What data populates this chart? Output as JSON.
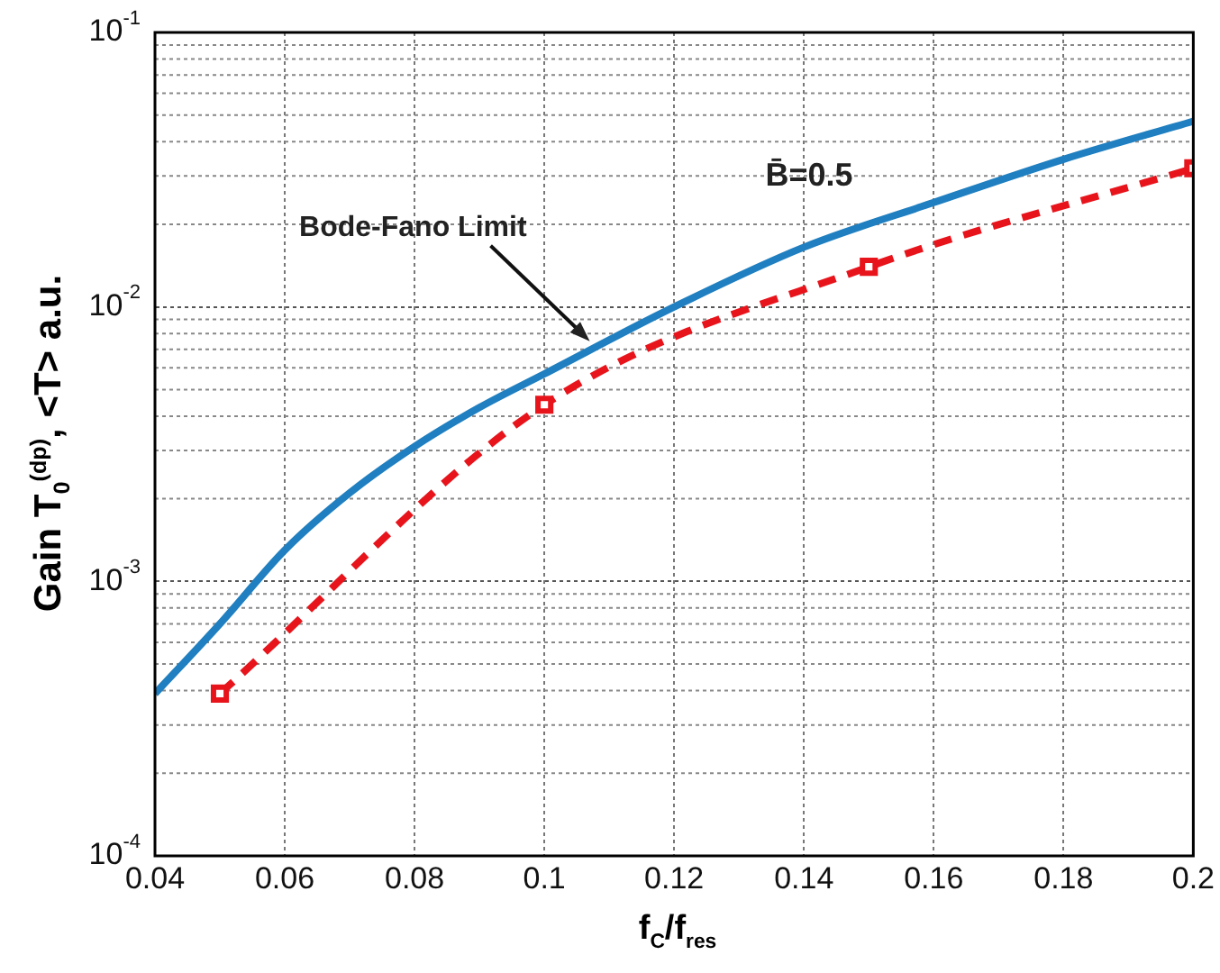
{
  "chart_data": {
    "type": "line",
    "xlabel": "f$_{C}$/f$_{res}$",
    "ylabel": "Gain T$_{0}$$^{(dp)}$, <T> a.u.",
    "series": [
      {
        "color": "#1f7fc0",
        "line_style": "solid",
        "marker": "none",
        "x": [
          0.04,
          0.05,
          0.06,
          0.07,
          0.08,
          0.09,
          0.1,
          0.12,
          0.14,
          0.16,
          0.18,
          0.2
        ],
        "values": [
          0.00039,
          0.0007,
          0.0013,
          0.0021,
          0.0031,
          0.0043,
          0.0057,
          0.01,
          0.0165,
          0.024,
          0.0345,
          0.0475
        ]
      },
      {
        "color": "#e8141c",
        "line_style": "dashed",
        "marker": "square",
        "x": [
          0.05,
          0.1,
          0.15,
          0.2
        ],
        "values": [
          0.00039,
          0.0044,
          0.014,
          0.032
        ]
      }
    ],
    "log": "y",
    "xlim": [
      0.04,
      0.2
    ],
    "xticks": [
      0.04,
      0.06,
      0.08,
      0.1,
      0.12,
      0.14,
      0.16,
      0.18,
      0.2
    ],
    "ylim": [
      0.0001,
      0.1
    ],
    "yticks": [
      {
        "value": 0.0001,
        "label": "10$^{-4}$"
      },
      {
        "value": 0.001,
        "label": "10$^{-3}$"
      },
      {
        "value": 0.01,
        "label": "10$^{-2}$"
      },
      {
        "value": 0.1,
        "label": "10$^{-1}$"
      }
    ],
    "grid": true,
    "legend": false,
    "annotations": [
      {
        "text": "Bode-Fano Limit",
        "x": 0.107,
        "y": 0.0075
      },
      "B̄=0.5"
    ]
  }
}
